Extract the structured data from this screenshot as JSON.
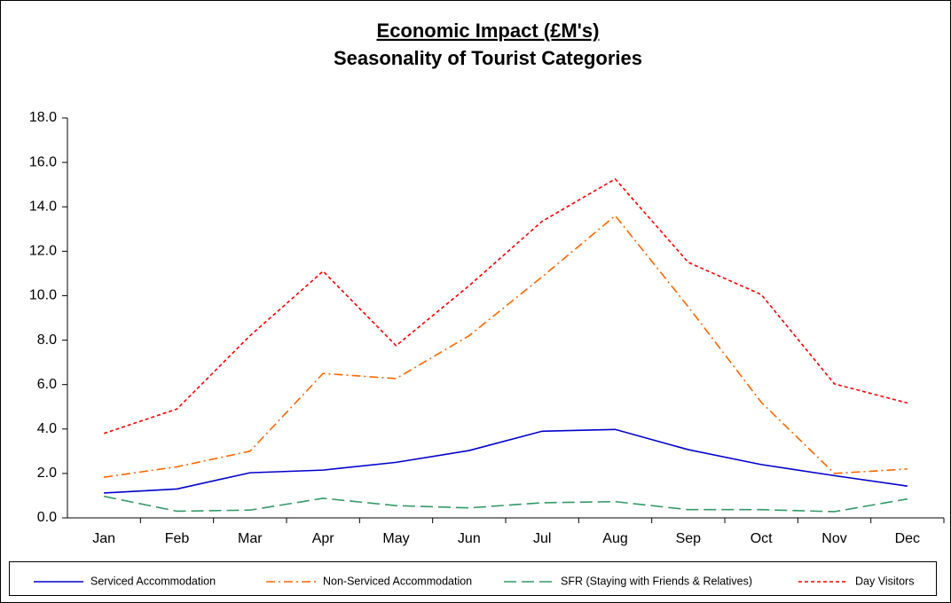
{
  "chart_data": {
    "type": "line",
    "title": "Economic Impact (£M's)",
    "subtitle": "Seasonality of Tourist Categories",
    "categories": [
      "Jan",
      "Feb",
      "Mar",
      "Apr",
      "May",
      "Jun",
      "Jul",
      "Aug",
      "Sep",
      "Oct",
      "Nov",
      "Dec"
    ],
    "series": [
      {
        "name": "Serviced Accommodation",
        "color": "#0000cc",
        "style": "solid",
        "values": [
          1.12,
          1.3,
          2.03,
          2.15,
          2.5,
          3.03,
          3.9,
          3.98,
          3.07,
          2.4,
          1.9,
          1.43
        ]
      },
      {
        "name": "Non-Serviced Accommodation",
        "color": "#ff6600",
        "style": "dashdot",
        "values": [
          1.83,
          2.3,
          3.0,
          6.5,
          6.27,
          8.2,
          10.85,
          13.6,
          9.5,
          5.2,
          2.0,
          2.2
        ]
      },
      {
        "name": "SFR (Staying with Friends & Relatives)",
        "color": "#339966",
        "style": "dashed",
        "values": [
          0.97,
          0.3,
          0.35,
          0.88,
          0.55,
          0.45,
          0.68,
          0.73,
          0.37,
          0.37,
          0.28,
          0.85
        ]
      },
      {
        "name": "Day Visitors",
        "color": "#ff0000",
        "style": "dotted",
        "values": [
          3.8,
          4.9,
          8.2,
          11.1,
          7.75,
          10.45,
          13.35,
          15.25,
          11.5,
          10.05,
          6.03,
          5.17
        ]
      }
    ],
    "ylim": [
      0,
      18
    ],
    "yticks": [
      {
        "value": 0,
        "label": "0.0"
      },
      {
        "value": 2,
        "label": "2.0"
      },
      {
        "value": 4,
        "label": "4.0"
      },
      {
        "value": 6,
        "label": "6.0"
      },
      {
        "value": 8,
        "label": "8.0"
      },
      {
        "value": 10,
        "label": "10.0"
      },
      {
        "value": 12,
        "label": "12.0"
      },
      {
        "value": 14,
        "label": "14.0"
      },
      {
        "value": 16,
        "label": "16.0"
      },
      {
        "value": 18,
        "label": "18.0"
      }
    ],
    "grid": false,
    "legend": "bottom"
  }
}
